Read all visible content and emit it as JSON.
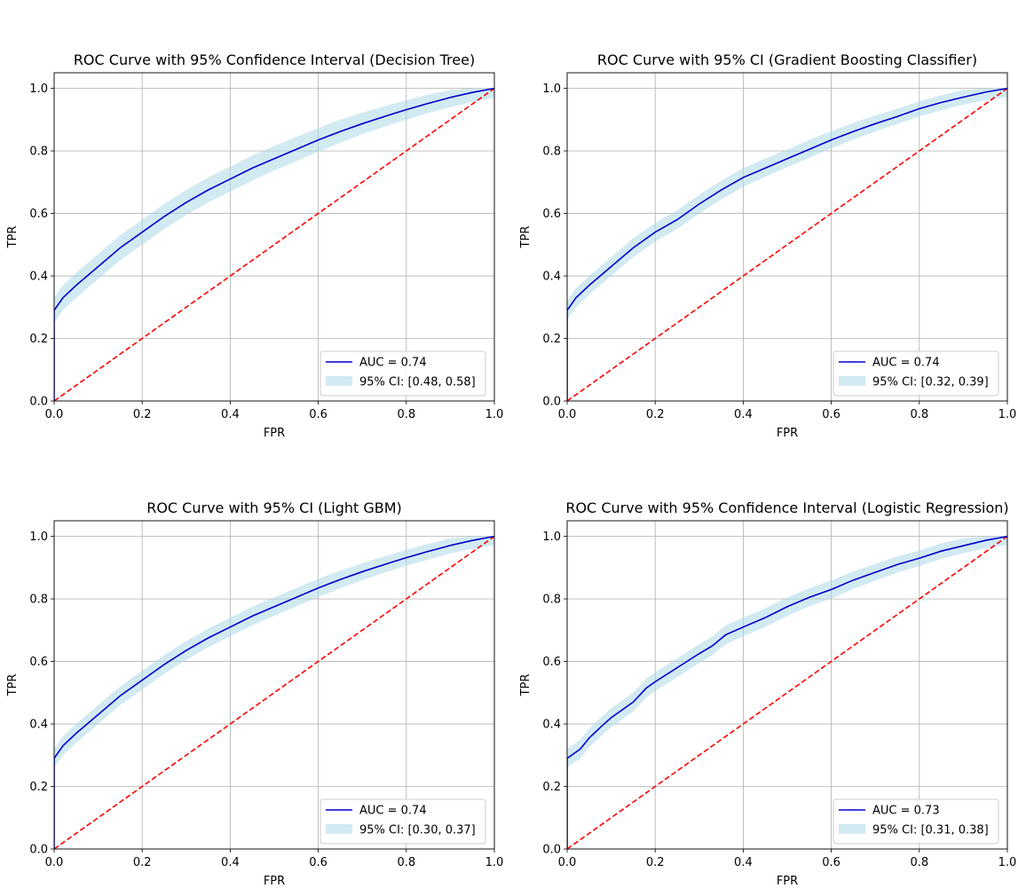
{
  "chart_data": [
    {
      "type": "line",
      "title": "ROC Curve with 95% Confidence Interval (Decision Tree)",
      "xlabel": "FPR",
      "ylabel": "TPR",
      "xlim": [
        0,
        1
      ],
      "ylim": [
        0,
        1.05
      ],
      "xticks": [
        "0.0",
        "0.2",
        "0.4",
        "0.6",
        "0.8",
        "1.0"
      ],
      "yticks": [
        "0.0",
        "0.2",
        "0.4",
        "0.6",
        "0.8",
        "1.0"
      ],
      "grid": true,
      "legend_position": "lower-right",
      "series": [
        {
          "name": "AUC = 0.74",
          "color": "#0000cd",
          "x": [
            0,
            0,
            0.02,
            0.05,
            0.1,
            0.15,
            0.2,
            0.25,
            0.3,
            0.35,
            0.4,
            0.45,
            0.5,
            0.55,
            0.6,
            0.65,
            0.7,
            0.75,
            0.8,
            0.85,
            0.9,
            0.95,
            1.0
          ],
          "y": [
            0,
            0.29,
            0.33,
            0.37,
            0.43,
            0.49,
            0.54,
            0.59,
            0.635,
            0.675,
            0.71,
            0.745,
            0.775,
            0.805,
            0.835,
            0.862,
            0.887,
            0.91,
            0.932,
            0.952,
            0.971,
            0.987,
            1.0
          ],
          "ci_low": [
            0,
            0.25,
            0.29,
            0.33,
            0.39,
            0.45,
            0.5,
            0.55,
            0.595,
            0.635,
            0.67,
            0.705,
            0.737,
            0.767,
            0.797,
            0.826,
            0.853,
            0.877,
            0.9,
            0.921,
            0.94,
            0.956,
            0.97
          ],
          "ci_high": [
            0,
            0.33,
            0.37,
            0.41,
            0.47,
            0.53,
            0.58,
            0.63,
            0.675,
            0.715,
            0.75,
            0.785,
            0.815,
            0.845,
            0.873,
            0.9,
            0.922,
            0.943,
            0.962,
            0.98,
            0.995,
            1.0,
            1.0
          ]
        },
        {
          "name": "95% CI: [0.48, 0.58]",
          "kind": "band",
          "color": "#add8e6"
        },
        {
          "kind": "diagonal",
          "color": "#ff0000",
          "x": [
            0,
            1
          ],
          "y": [
            0,
            1
          ]
        }
      ]
    },
    {
      "type": "line",
      "title": "ROC Curve with 95% CI (Gradient Boosting Classifier)",
      "xlabel": "FPR",
      "ylabel": "TPR",
      "xlim": [
        0,
        1
      ],
      "ylim": [
        0,
        1.05
      ],
      "xticks": [
        "0.0",
        "0.2",
        "0.4",
        "0.6",
        "0.8",
        "1.0"
      ],
      "yticks": [
        "0.0",
        "0.2",
        "0.4",
        "0.6",
        "0.8",
        "1.0"
      ],
      "grid": true,
      "legend_position": "lower-right",
      "series": [
        {
          "name": "AUC = 0.74",
          "color": "#0000cd",
          "x": [
            0,
            0,
            0.02,
            0.05,
            0.1,
            0.15,
            0.2,
            0.25,
            0.3,
            0.35,
            0.4,
            0.45,
            0.5,
            0.55,
            0.6,
            0.65,
            0.7,
            0.75,
            0.8,
            0.85,
            0.9,
            0.95,
            1.0
          ],
          "y": [
            0,
            0.29,
            0.33,
            0.37,
            0.43,
            0.49,
            0.54,
            0.58,
            0.63,
            0.675,
            0.715,
            0.745,
            0.775,
            0.805,
            0.835,
            0.862,
            0.887,
            0.91,
            0.935,
            0.955,
            0.972,
            0.988,
            1.0
          ],
          "ci_low": [
            0,
            0.26,
            0.3,
            0.34,
            0.4,
            0.46,
            0.51,
            0.55,
            0.6,
            0.645,
            0.685,
            0.717,
            0.748,
            0.778,
            0.808,
            0.836,
            0.862,
            0.886,
            0.91,
            0.93,
            0.948,
            0.962,
            0.972
          ],
          "ci_high": [
            0,
            0.32,
            0.36,
            0.4,
            0.46,
            0.52,
            0.57,
            0.61,
            0.66,
            0.705,
            0.745,
            0.775,
            0.805,
            0.835,
            0.863,
            0.89,
            0.913,
            0.935,
            0.958,
            0.978,
            0.995,
            1.0,
            1.0
          ]
        },
        {
          "name": "95% CI: [0.32, 0.39]",
          "kind": "band",
          "color": "#add8e6"
        },
        {
          "kind": "diagonal",
          "color": "#ff0000",
          "x": [
            0,
            1
          ],
          "y": [
            0,
            1
          ]
        }
      ]
    },
    {
      "type": "line",
      "title": "ROC Curve with 95% CI (Light GBM)",
      "xlabel": "FPR",
      "ylabel": "TPR",
      "xlim": [
        0,
        1
      ],
      "ylim": [
        0,
        1.05
      ],
      "xticks": [
        "0.0",
        "0.2",
        "0.4",
        "0.6",
        "0.8",
        "1.0"
      ],
      "yticks": [
        "0.0",
        "0.2",
        "0.4",
        "0.6",
        "0.8",
        "1.0"
      ],
      "grid": true,
      "legend_position": "lower-right",
      "series": [
        {
          "name": "AUC = 0.74",
          "color": "#0000cd",
          "x": [
            0,
            0,
            0.02,
            0.05,
            0.1,
            0.15,
            0.2,
            0.25,
            0.3,
            0.35,
            0.4,
            0.45,
            0.5,
            0.55,
            0.6,
            0.65,
            0.7,
            0.75,
            0.8,
            0.85,
            0.9,
            0.95,
            1.0
          ],
          "y": [
            0,
            0.29,
            0.33,
            0.37,
            0.43,
            0.49,
            0.54,
            0.59,
            0.635,
            0.675,
            0.71,
            0.745,
            0.775,
            0.805,
            0.835,
            0.862,
            0.887,
            0.91,
            0.932,
            0.952,
            0.971,
            0.987,
            1.0
          ],
          "ci_low": [
            0,
            0.26,
            0.3,
            0.34,
            0.4,
            0.46,
            0.51,
            0.56,
            0.605,
            0.645,
            0.68,
            0.715,
            0.746,
            0.776,
            0.806,
            0.834,
            0.86,
            0.884,
            0.906,
            0.926,
            0.945,
            0.96,
            0.972
          ],
          "ci_high": [
            0,
            0.32,
            0.36,
            0.4,
            0.46,
            0.52,
            0.57,
            0.62,
            0.665,
            0.705,
            0.74,
            0.775,
            0.805,
            0.835,
            0.864,
            0.89,
            0.914,
            0.936,
            0.957,
            0.976,
            0.993,
            1.0,
            1.0
          ]
        },
        {
          "name": "95% CI: [0.30, 0.37]",
          "kind": "band",
          "color": "#add8e6"
        },
        {
          "kind": "diagonal",
          "color": "#ff0000",
          "x": [
            0,
            1
          ],
          "y": [
            0,
            1
          ]
        }
      ]
    },
    {
      "type": "line",
      "title": "ROC Curve with 95% Confidence Interval (Logistic Regression)",
      "xlabel": "FPR",
      "ylabel": "TPR",
      "xlim": [
        0,
        1
      ],
      "ylim": [
        0,
        1.05
      ],
      "xticks": [
        "0.0",
        "0.2",
        "0.4",
        "0.6",
        "0.8",
        "1.0"
      ],
      "yticks": [
        "0.0",
        "0.2",
        "0.4",
        "0.6",
        "0.8",
        "1.0"
      ],
      "grid": true,
      "legend_position": "lower-right",
      "series": [
        {
          "name": "AUC = 0.73",
          "color": "#0000cd",
          "x": [
            0,
            0,
            0.03,
            0.05,
            0.08,
            0.1,
            0.15,
            0.18,
            0.2,
            0.25,
            0.3,
            0.33,
            0.36,
            0.4,
            0.45,
            0.5,
            0.55,
            0.6,
            0.65,
            0.7,
            0.75,
            0.8,
            0.85,
            0.9,
            0.95,
            1.0
          ],
          "y": [
            0,
            0.29,
            0.32,
            0.355,
            0.395,
            0.42,
            0.47,
            0.515,
            0.535,
            0.58,
            0.625,
            0.65,
            0.685,
            0.71,
            0.74,
            0.775,
            0.805,
            0.83,
            0.86,
            0.885,
            0.91,
            0.93,
            0.953,
            0.97,
            0.987,
            1.0
          ],
          "ci_low": [
            0,
            0.26,
            0.29,
            0.325,
            0.365,
            0.39,
            0.44,
            0.485,
            0.505,
            0.55,
            0.595,
            0.62,
            0.655,
            0.68,
            0.71,
            0.745,
            0.776,
            0.801,
            0.832,
            0.858,
            0.884,
            0.905,
            0.928,
            0.946,
            0.962,
            0.972
          ],
          "ci_high": [
            0,
            0.32,
            0.35,
            0.385,
            0.425,
            0.45,
            0.5,
            0.545,
            0.565,
            0.61,
            0.655,
            0.68,
            0.715,
            0.74,
            0.77,
            0.805,
            0.834,
            0.859,
            0.888,
            0.912,
            0.936,
            0.955,
            0.978,
            0.994,
            1.0,
            1.0
          ]
        },
        {
          "name": "95% CI: [0.31, 0.38]",
          "kind": "band",
          "color": "#add8e6"
        },
        {
          "kind": "diagonal",
          "color": "#ff0000",
          "x": [
            0,
            1
          ],
          "y": [
            0,
            1
          ]
        }
      ]
    }
  ]
}
